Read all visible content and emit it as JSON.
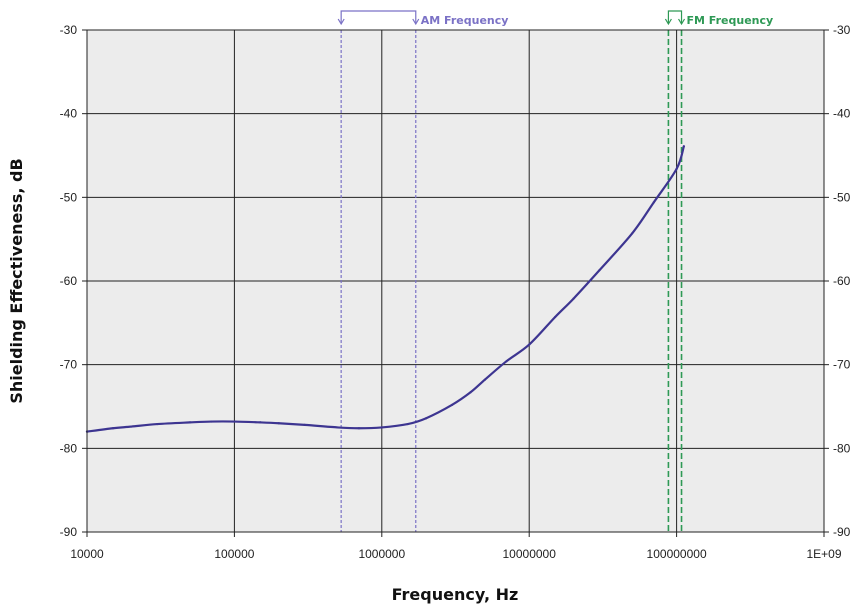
{
  "chart_data": {
    "type": "line",
    "title": "",
    "xlabel": "Frequency, Hz",
    "ylabel": "Shielding Effectiveness, dB",
    "x_scale": "log",
    "xlim": [
      10000,
      1000000000
    ],
    "ylim": [
      -90,
      -30
    ],
    "x_tick_labels": [
      "10000",
      "100000",
      "1000000",
      "10000000",
      "100000000",
      "1E+09"
    ],
    "x_tick_values": [
      10000,
      100000,
      1000000,
      10000000,
      100000000,
      1000000000
    ],
    "y_ticks": [
      -30,
      -40,
      -50,
      -60,
      -70,
      -80,
      -90
    ],
    "y_tick_labels": [
      "-30",
      "-40",
      "-50",
      "-60",
      "-70",
      "-80",
      "-90"
    ],
    "grid": true,
    "plot_background": "#ececec",
    "series": [
      {
        "color": "#3d3591",
        "x": [
          10000,
          15000,
          20000,
          30000,
          50000,
          70000,
          100000,
          150000,
          200000,
          300000,
          500000,
          700000,
          1000000,
          1500000,
          2000000,
          3000000,
          4000000,
          5000000,
          7000000,
          10000000,
          15000000,
          20000000,
          30000000,
          50000000,
          70000000,
          100000000,
          112000000
        ],
        "y": [
          -78.0,
          -77.6,
          -77.4,
          -77.1,
          -76.9,
          -76.8,
          -76.8,
          -76.9,
          -77.0,
          -77.2,
          -77.5,
          -77.6,
          -77.5,
          -77.1,
          -76.4,
          -74.8,
          -73.3,
          -71.8,
          -69.6,
          -67.6,
          -64.3,
          -62.1,
          -58.7,
          -54.3,
          -50.6,
          -46.6,
          -43.9
        ]
      }
    ],
    "bands": [
      {
        "label": "AM Frequency",
        "start": 530000,
        "end": 1700000,
        "color": "#7b72c6"
      },
      {
        "label": "FM Frequency",
        "start": 88000000,
        "end": 108000000,
        "color": "#2e9955"
      }
    ]
  }
}
